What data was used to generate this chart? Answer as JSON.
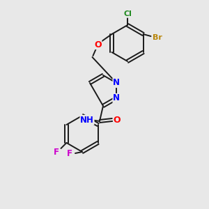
{
  "background_color": "#e8e8e8",
  "bond_color": "#1a1a1a",
  "atom_colors": {
    "Br": "#b8860b",
    "Cl": "#228B22",
    "O": "#ff0000",
    "N": "#0000ff",
    "F": "#cc00cc",
    "H": "#1a1a1a",
    "C": "#1a1a1a"
  },
  "figsize": [
    3.0,
    3.0
  ],
  "dpi": 100,
  "lw": 1.4
}
